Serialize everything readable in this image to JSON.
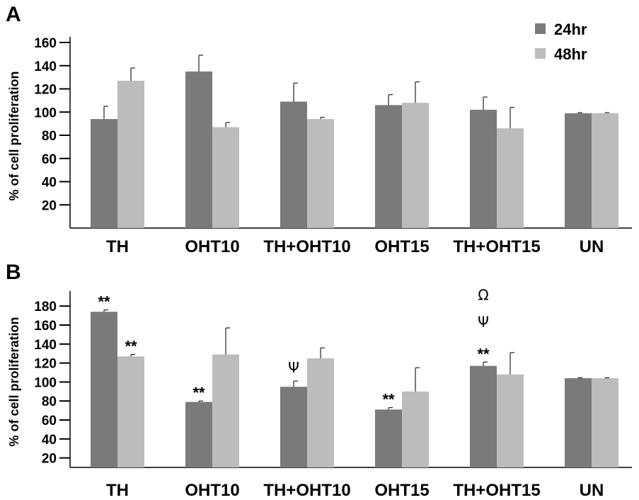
{
  "colors": {
    "h24": "#7a7a7c",
    "h48": "#bcbcbe",
    "axis": "#000000"
  },
  "legend": [
    {
      "label": "24hr",
      "color": "#7a7a7c"
    },
    {
      "label": "48hr",
      "color": "#bcbcbe"
    }
  ],
  "chart_data": [
    {
      "type": "bar",
      "panel": "A",
      "ylabel": "% of cell proliferation",
      "xlabel": "",
      "ylim": [
        0,
        160
      ],
      "yticks": [
        20,
        40,
        60,
        80,
        100,
        120,
        140,
        160
      ],
      "categories": [
        "TH",
        "OHT10",
        "TH+OHT10",
        "OHT15",
        "TH+OHT15",
        "UN"
      ],
      "series": [
        {
          "name": "24hr",
          "values": [
            94,
            135,
            109,
            106,
            102,
            99
          ],
          "errors": [
            11,
            14,
            16,
            9,
            11,
            0.5
          ]
        },
        {
          "name": "48hr",
          "values": [
            127,
            87,
            94,
            108,
            86,
            99
          ],
          "errors": [
            11,
            4,
            1.5,
            18,
            18,
            0.5
          ]
        }
      ],
      "annotations": [],
      "legend_position": "top-right"
    },
    {
      "type": "bar",
      "panel": "B",
      "ylabel": "% of cell proliferation",
      "xlabel": "",
      "ylim": [
        10,
        190
      ],
      "yticks": [
        20,
        40,
        60,
        80,
        100,
        120,
        140,
        160,
        180
      ],
      "categories": [
        "TH",
        "OHT10",
        "TH+OHT10",
        "OHT15",
        "TH+OHT15",
        "UN"
      ],
      "series": [
        {
          "name": "24hr",
          "values": [
            174,
            79,
            95,
            71,
            117,
            104
          ],
          "errors": [
            2,
            1,
            6,
            2,
            4,
            0.5
          ]
        },
        {
          "name": "48hr",
          "values": [
            127,
            129,
            125,
            90,
            108,
            104
          ],
          "errors": [
            2,
            28,
            11,
            25,
            23,
            0.5
          ]
        }
      ],
      "annotations": [
        {
          "category": 0,
          "series": 0,
          "texts": [
            "**"
          ]
        },
        {
          "category": 0,
          "series": 1,
          "texts": [
            "**"
          ]
        },
        {
          "category": 1,
          "series": 0,
          "texts": [
            "**"
          ]
        },
        {
          "category": 2,
          "series": 0,
          "texts": [
            "Ψ"
          ]
        },
        {
          "category": 3,
          "series": 0,
          "texts": [
            "**"
          ]
        },
        {
          "category": 4,
          "series": 0,
          "texts": [
            "**",
            "Ψ",
            "Ω"
          ]
        }
      ]
    }
  ]
}
